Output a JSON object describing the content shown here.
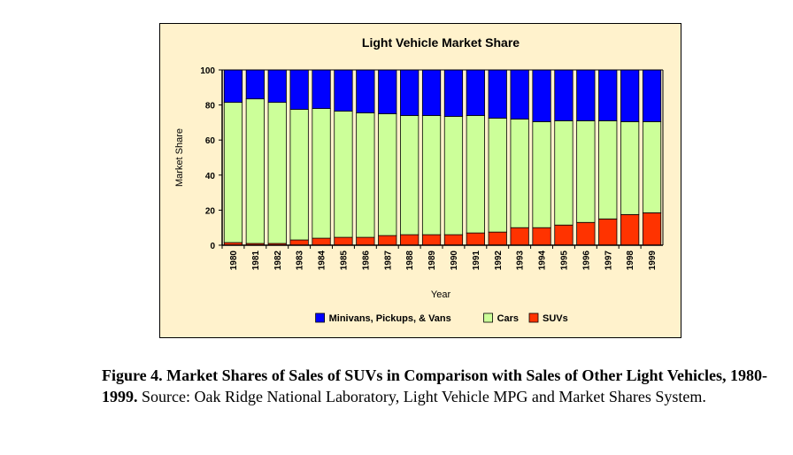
{
  "chart_data": {
    "type": "bar",
    "stacked": true,
    "title": "Light Vehicle Market Share",
    "xlabel": "Year",
    "ylabel": "Market Share",
    "ylim": [
      0,
      100
    ],
    "yticks": [
      "0",
      "20",
      "40",
      "60",
      "80",
      "100"
    ],
    "categories": [
      "1980",
      "1981",
      "1982",
      "1983",
      "1984",
      "1985",
      "1986",
      "1987",
      "1988",
      "1989",
      "1990",
      "1991",
      "1992",
      "1993",
      "1994",
      "1995",
      "1996",
      "1997",
      "1998",
      "1999"
    ],
    "series": [
      {
        "name": "SUVs",
        "color": "#ff3300",
        "values": [
          1.5,
          1,
          1,
          3,
          4,
          4.5,
          4.5,
          5.5,
          6,
          6,
          6,
          7,
          7.5,
          10,
          10,
          11.5,
          13,
          15,
          17.5,
          18.5
        ]
      },
      {
        "name": "Cars",
        "color": "#ccff99",
        "values": [
          80,
          82.5,
          80.5,
          74.5,
          74,
          72,
          71,
          69.5,
          68,
          68,
          67.5,
          67,
          65,
          62,
          60.5,
          59.5,
          58,
          56,
          53,
          52
        ]
      },
      {
        "name": "Minivans, Pickups, & Vans",
        "color": "#0000ff",
        "values": [
          18.5,
          16.5,
          18.5,
          22.5,
          22,
          23.5,
          24.5,
          25,
          26,
          26,
          26.5,
          26,
          27.5,
          28,
          29.5,
          29,
          29,
          29,
          29.5,
          29.5
        ]
      }
    ],
    "legend": {
      "position": "bottom",
      "order": [
        "Minivans, Pickups, & Vans",
        "Cars",
        "SUVs"
      ]
    }
  },
  "caption": {
    "bold": "Figure 4. Market Shares of Sales of SUVs in Comparison with Sales of Other Light Vehicles, 1980-1999.",
    "source": "  Source: Oak Ridge National Laboratory, Light Vehicle MPG and Market Shares System."
  }
}
